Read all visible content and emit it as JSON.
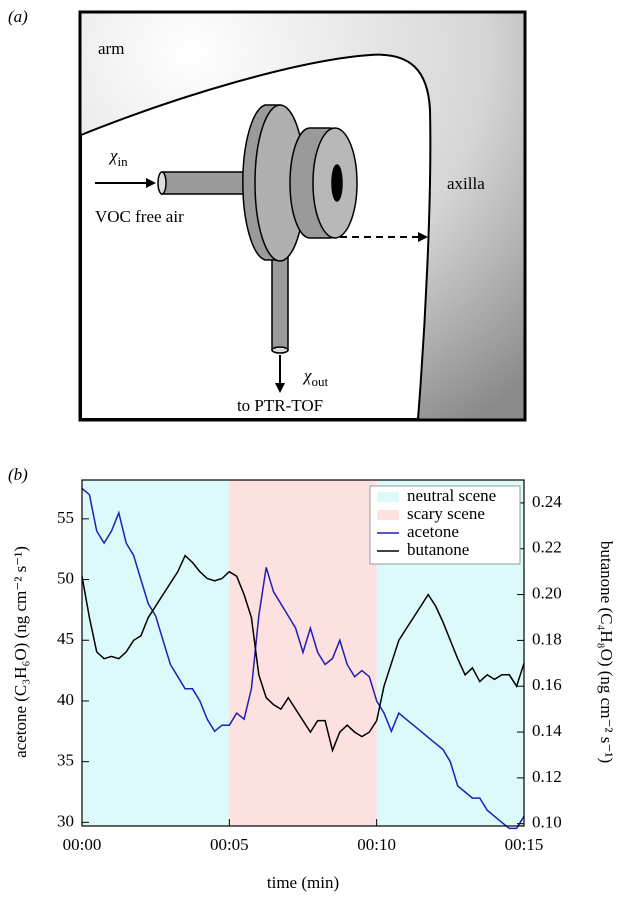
{
  "diagram": {
    "panel_label": "(a)",
    "region_arm": "arm",
    "region_axilla": "axilla",
    "inlet": {
      "symbol": "χ",
      "subscript": "in",
      "caption": "VOC free air"
    },
    "outlet": {
      "symbol": "χ",
      "subscript": "out",
      "caption": "to PTR-TOF"
    }
  },
  "chart_data": {
    "type": "line",
    "panel_label": "(b)",
    "x_label": "time (min)",
    "y_label": "acetone (C₃H₆O) (ng cm⁻² s⁻¹)",
    "y2_label": "butanone (C₄H₈O) (ng cm⁻² s⁻¹)",
    "xlim": [
      0,
      15
    ],
    "xticks": [
      {
        "value": 0,
        "label": "00:00"
      },
      {
        "value": 5,
        "label": "00:05"
      },
      {
        "value": 10,
        "label": "00:10"
      },
      {
        "value": 15,
        "label": "00:15"
      }
    ],
    "ylim": [
      29.7,
      58.2
    ],
    "yticks": [
      30,
      35,
      40,
      45,
      50,
      55
    ],
    "y2lim": [
      0.099,
      0.25
    ],
    "y2ticks": [
      0.1,
      0.12,
      0.14,
      0.16,
      0.18,
      0.2,
      0.22,
      0.24
    ],
    "regions": [
      {
        "name": "neutral scene",
        "color": "#dcfafa",
        "spans": [
          [
            0,
            5
          ],
          [
            10,
            15
          ]
        ]
      },
      {
        "name": "scary scene",
        "color": "#fde0e0",
        "spans": [
          [
            5,
            10
          ]
        ]
      }
    ],
    "x": [
      0,
      0.25,
      0.5,
      0.75,
      1,
      1.25,
      1.5,
      1.75,
      2,
      2.25,
      2.5,
      2.75,
      3,
      3.25,
      3.5,
      3.75,
      4,
      4.25,
      4.5,
      4.75,
      5,
      5.25,
      5.5,
      5.75,
      6,
      6.25,
      6.5,
      6.75,
      7,
      7.25,
      7.5,
      7.75,
      8,
      8.25,
      8.5,
      8.75,
      9,
      9.25,
      9.5,
      9.75,
      10,
      10.25,
      10.5,
      10.75,
      11,
      11.25,
      11.5,
      11.75,
      12,
      12.25,
      12.5,
      12.75,
      13,
      13.25,
      13.5,
      13.75,
      14,
      14.25,
      14.5,
      14.75,
      15
    ],
    "series": [
      {
        "name": "acetone",
        "color": "#1f1fb4",
        "axis": "y",
        "values": [
          57.5,
          57,
          54,
          53,
          54,
          55.5,
          53,
          52,
          50,
          48,
          47,
          45,
          43,
          42,
          41,
          41,
          40,
          38.5,
          37.5,
          38,
          38,
          39,
          38.5,
          41,
          47,
          51,
          49,
          48,
          47,
          46,
          44,
          46,
          44,
          43,
          43.5,
          45,
          43,
          42,
          42.5,
          42,
          40,
          39,
          37.5,
          39,
          38.5,
          38,
          37.5,
          37,
          36.5,
          36,
          35,
          33,
          32.5,
          32,
          32,
          31,
          30.5,
          30,
          29.5,
          29.5,
          30.5
        ]
      },
      {
        "name": "butanone",
        "color": "#000000",
        "axis": "y2",
        "values": [
          0.208,
          0.19,
          0.175,
          0.172,
          0.173,
          0.172,
          0.175,
          0.18,
          0.182,
          0.19,
          0.195,
          0.2,
          0.205,
          0.21,
          0.217,
          0.214,
          0.21,
          0.207,
          0.206,
          0.207,
          0.21,
          0.208,
          0.2,
          0.19,
          0.165,
          0.155,
          0.152,
          0.15,
          0.155,
          0.15,
          0.145,
          0.14,
          0.145,
          0.145,
          0.132,
          0.14,
          0.143,
          0.14,
          0.138,
          0.14,
          0.145,
          0.16,
          0.17,
          0.18,
          0.185,
          0.19,
          0.195,
          0.2,
          0.195,
          0.188,
          0.18,
          0.172,
          0.165,
          0.168,
          0.162,
          0.165,
          0.163,
          0.165,
          0.165,
          0.16,
          0.17
        ]
      }
    ]
  }
}
